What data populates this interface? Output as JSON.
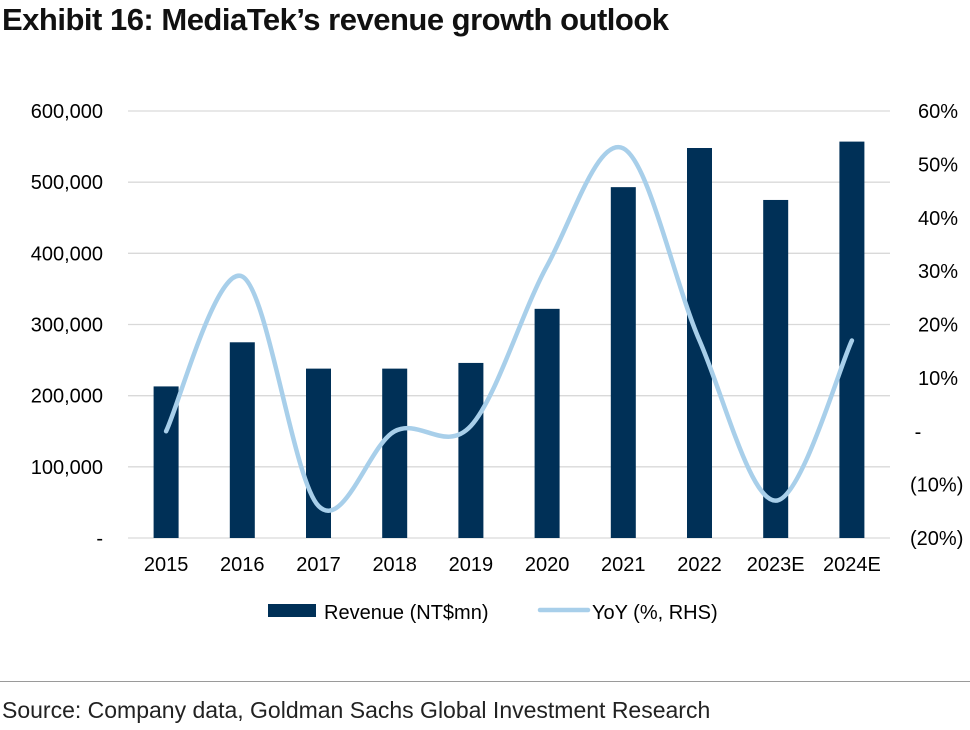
{
  "title": "Exhibit 16: MediaTek’s revenue growth outlook",
  "source": "Source: Company data, Goldman Sachs Global Investment Research",
  "colors": {
    "bar": "#003057",
    "line": "#a8cfea",
    "grid": "#d9d9d9",
    "text": "#000000"
  },
  "chart_data": {
    "type": "bar",
    "categories": [
      "2015",
      "2016",
      "2017",
      "2018",
      "2019",
      "2020",
      "2021",
      "2022",
      "2023E",
      "2024E"
    ],
    "series": [
      {
        "name": "Revenue (NT$mn)",
        "type": "bar",
        "axis": "left",
        "values": [
          213000,
          275000,
          238000,
          238000,
          246000,
          322000,
          493000,
          548000,
          475000,
          557000
        ]
      },
      {
        "name": "YoY (%, RHS)",
        "type": "line",
        "axis": "right",
        "values": [
          0,
          29,
          -14,
          0,
          1,
          31,
          53,
          17,
          -13,
          17
        ]
      }
    ],
    "ylim_left": [
      0,
      600000
    ],
    "ylim_right": [
      -20,
      60
    ],
    "yticks_left": [
      "-",
      "100,000",
      "200,000",
      "300,000",
      "400,000",
      "500,000",
      "600,000"
    ],
    "yticks_right": [
      "(20%)",
      "(10%)",
      "-",
      "10%",
      "20%",
      "30%",
      "40%",
      "50%",
      "60%"
    ],
    "grid": true,
    "legend_position": "bottom"
  }
}
